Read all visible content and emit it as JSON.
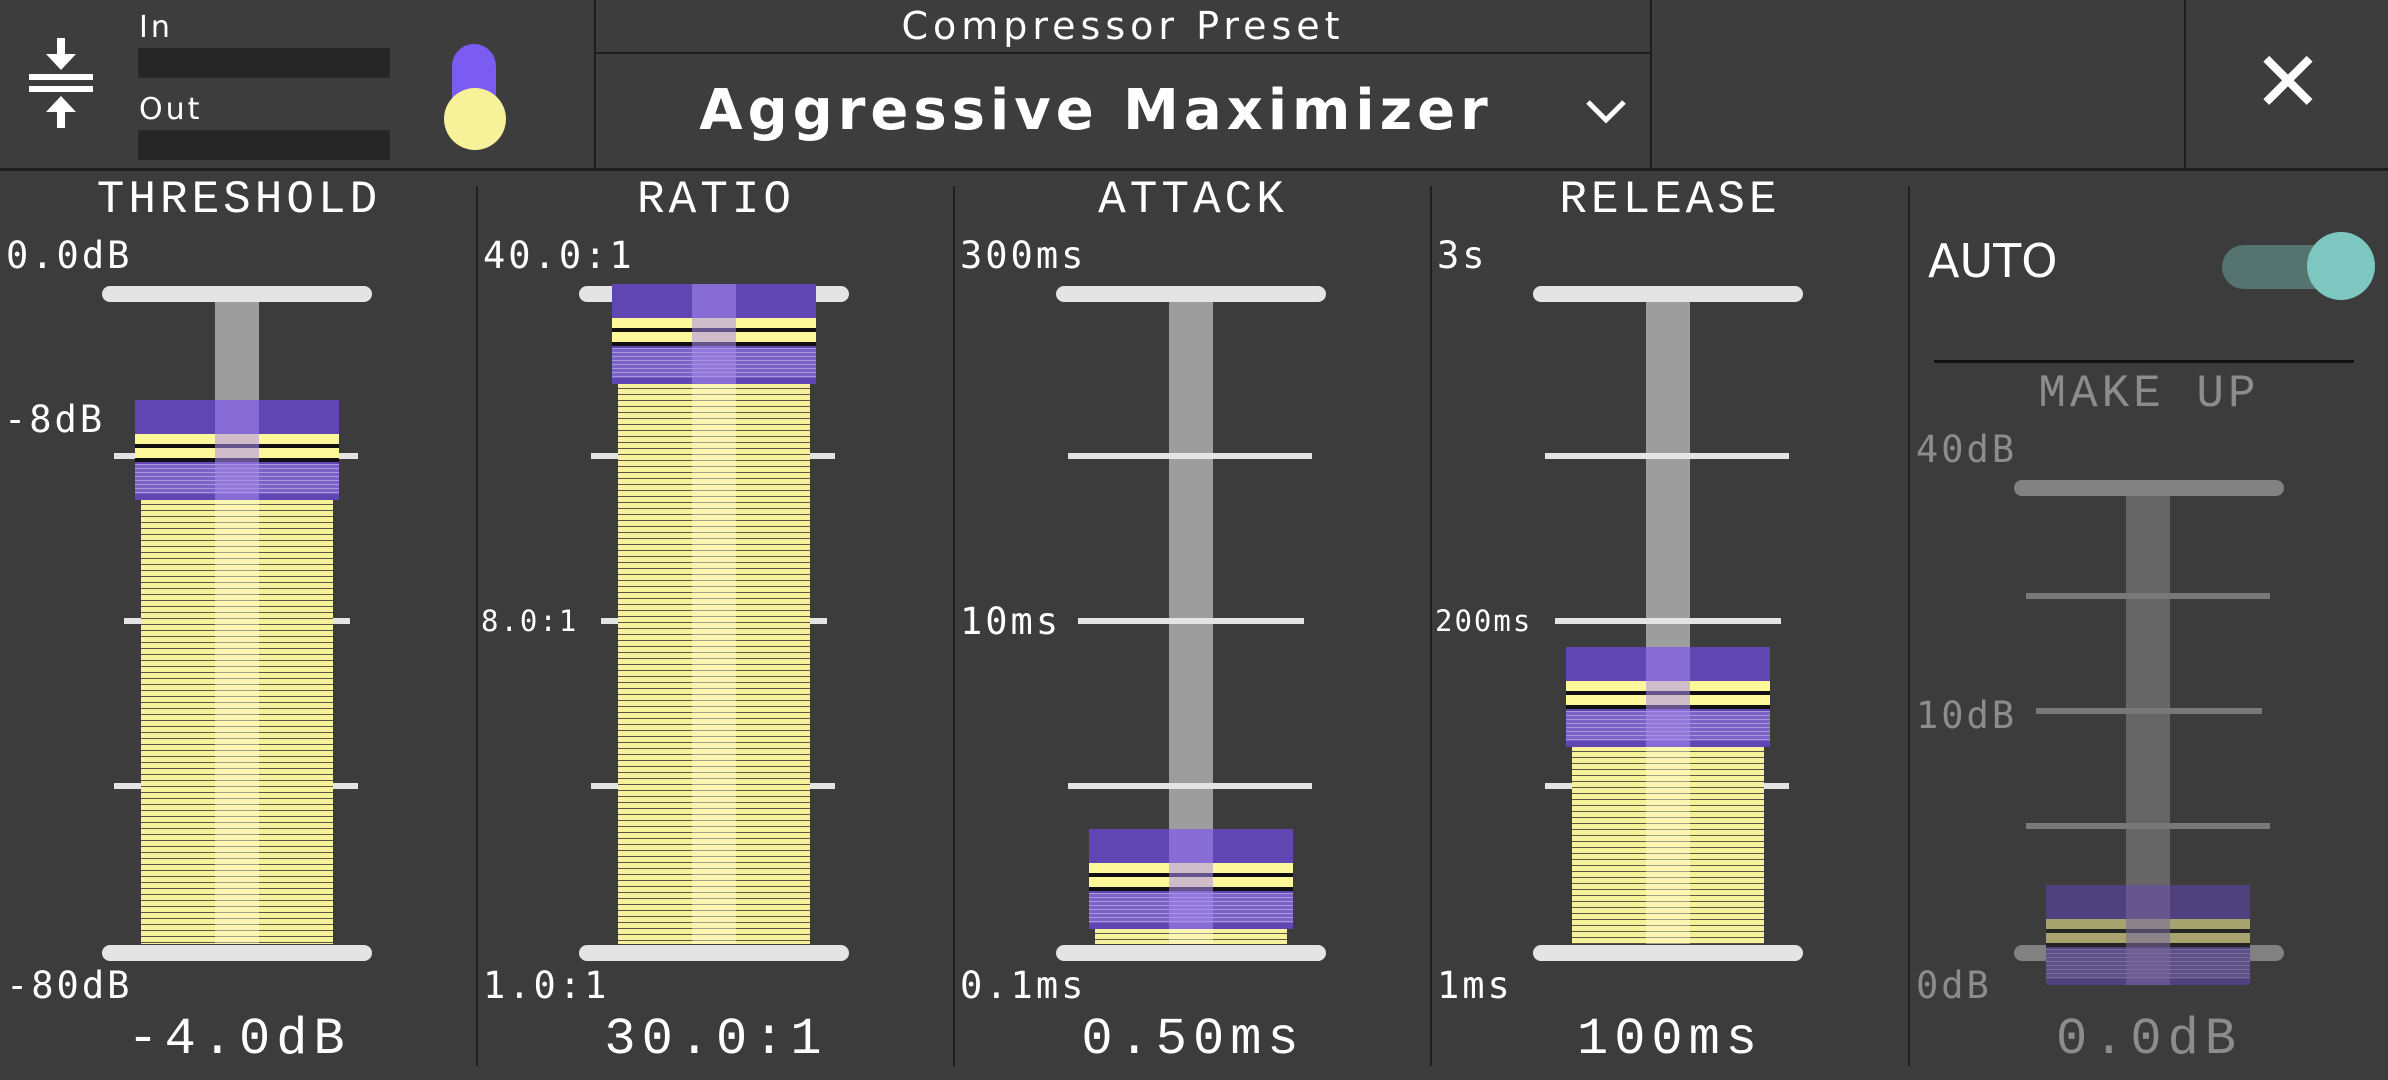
{
  "header": {
    "meter_in_label": "In",
    "meter_out_label": "Out",
    "preset_title": "Compressor Preset",
    "preset_name": "Aggressive Maximizer",
    "icons": {
      "compressor": "compress-arrows-icon",
      "dropdown": "chevron-down-icon",
      "close": "close-icon",
      "knob": "gain-knob-icon"
    }
  },
  "faders": {
    "threshold": {
      "title": "THRESHOLD",
      "top_label": "0.0dB",
      "mid_label": "-8dB",
      "bottom_label": "-80dB",
      "value": "-4.0dB",
      "level": 0.76
    },
    "ratio": {
      "title": "RATIO",
      "top_label": "40.0:1",
      "mid_label": "8.0:1",
      "bottom_label": "1.0:1",
      "value": "30.0:1",
      "level": 0.94
    },
    "attack": {
      "title": "ATTACK",
      "top_label": "300ms",
      "mid_label": "10ms",
      "bottom_label": "0.1ms",
      "value": "0.50ms",
      "level": 0.1
    },
    "release": {
      "title": "RELEASE",
      "top_label": "3s",
      "mid_label": "200ms",
      "bottom_label": "1ms",
      "value": "100ms",
      "level": 0.38
    }
  },
  "auto": {
    "label": "AUTO",
    "enabled": true
  },
  "makeup": {
    "title": "MAKE UP",
    "top_label": "40dB",
    "mid_label": "10dB",
    "bottom_label": "0dB",
    "value": "0.0dB",
    "level": 0.02
  },
  "colors": {
    "accent_purple": "#6046b3",
    "fill_yellow": "#f7f19a",
    "toggle_teal": "#7dc7c0"
  }
}
